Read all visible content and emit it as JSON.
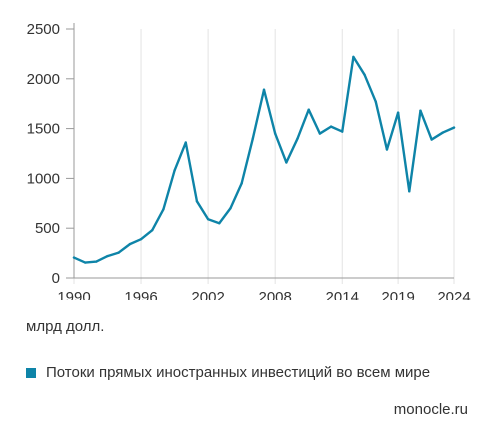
{
  "chart_data": {
    "type": "line",
    "x": [
      1990,
      1991,
      1992,
      1993,
      1994,
      1995,
      1996,
      1997,
      1998,
      1999,
      2000,
      2001,
      2002,
      2003,
      2004,
      2005,
      2006,
      2007,
      2008,
      2009,
      2010,
      2011,
      2012,
      2013,
      2014,
      2015,
      2016,
      2017,
      2018,
      2019,
      2020,
      2021,
      2022,
      2023,
      2024
    ],
    "series": [
      {
        "name": "Потоки прямых иностранных инвестиций во всем мире",
        "color": "#0e84a8",
        "values": [
          205,
          155,
          165,
          220,
          255,
          340,
          390,
          480,
          690,
          1080,
          1360,
          770,
          590,
          550,
          700,
          950,
          1400,
          1890,
          1450,
          1160,
          1400,
          1690,
          1450,
          1520,
          1470,
          2220,
          2040,
          1770,
          1290,
          1660,
          870,
          1680,
          1390,
          1460,
          1510
        ]
      }
    ],
    "xticks": [
      "1990",
      "1996",
      "2002",
      "2008",
      "2014",
      "2019",
      "2024"
    ],
    "yticks": [
      "0",
      "500",
      "1000",
      "1500",
      "2000",
      "2500"
    ],
    "xlim": [
      1990,
      2024
    ],
    "ylim": [
      0,
      2500
    ],
    "grid": "vertical",
    "unit_label": "млрд долл.",
    "legend_position": "bottom-left",
    "source": "monocle.ru"
  }
}
